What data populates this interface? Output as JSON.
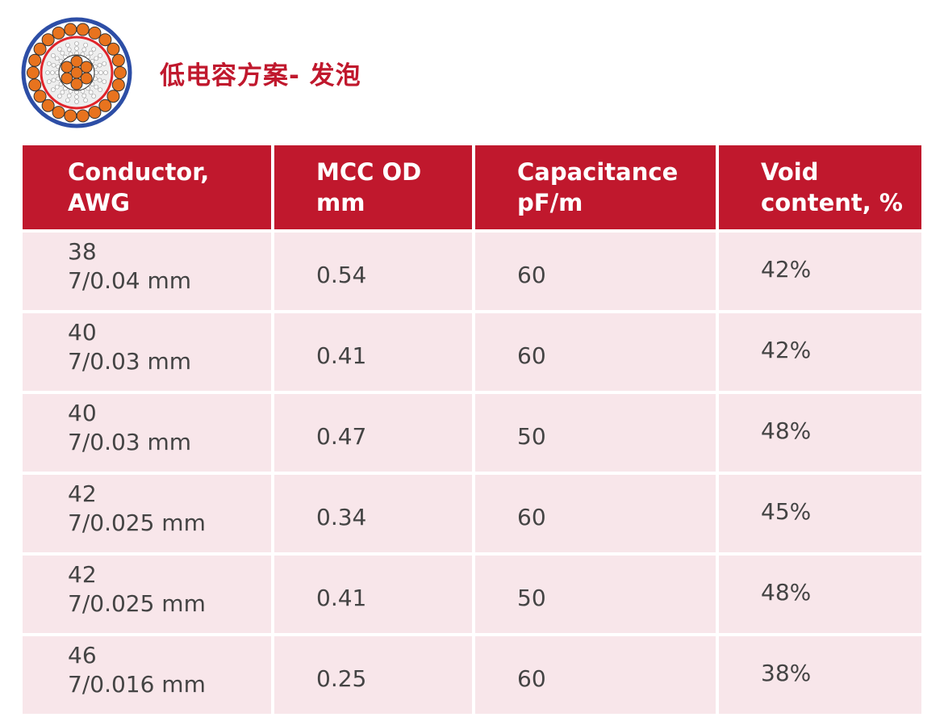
{
  "title": "低电容方案- 发泡",
  "logo": {
    "icon": "cable-cross-section-icon",
    "colors": {
      "outer": "#2d4ea6",
      "strands": "#e8731e",
      "shield": "#e0242a"
    }
  },
  "colors": {
    "header_bg": "#c0182d",
    "row_bg": "#f8e6ea"
  },
  "table": {
    "headers": [
      {
        "line1": "Conductor,",
        "line2": "AWG"
      },
      {
        "line1": "MCC OD",
        "line2": "mm"
      },
      {
        "line1": "Capacitance",
        "line2": "pF/m"
      },
      {
        "line1": "Void",
        "line2": "content, %"
      }
    ],
    "rows": [
      {
        "awg": "38",
        "strand": "7/0.04 mm",
        "od": "0.54",
        "cap": "60",
        "void": "42%"
      },
      {
        "awg": "40",
        "strand": "7/0.03 mm",
        "od": "0.41",
        "cap": "60",
        "void": "42%"
      },
      {
        "awg": "40",
        "strand": "7/0.03 mm",
        "od": "0.47",
        "cap": "50",
        "void": "48%"
      },
      {
        "awg": "42",
        "strand": "7/0.025 mm",
        "od": "0.34",
        "cap": "60",
        "void": "45%"
      },
      {
        "awg": "42",
        "strand": "7/0.025 mm",
        "od": "0.41",
        "cap": "50",
        "void": "48%"
      },
      {
        "awg": "46",
        "strand": "7/0.016 mm",
        "od": "0.25",
        "cap": "60",
        "void": "38%"
      }
    ]
  }
}
